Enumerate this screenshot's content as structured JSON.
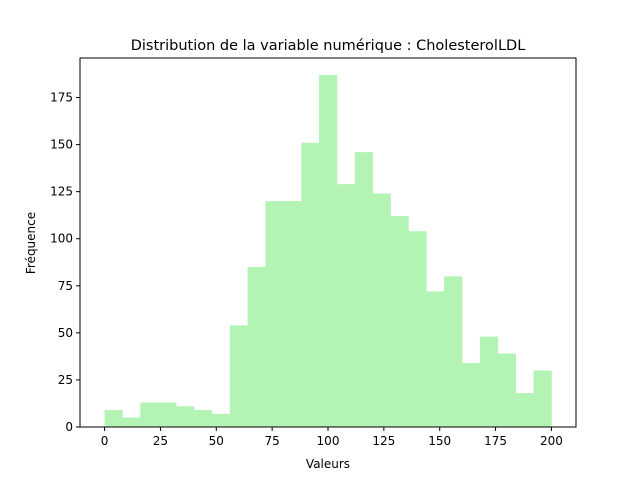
{
  "chart_data": {
    "type": "bar",
    "title": "Distribution de la variable numérique : CholesterolLDL",
    "xlabel": "Valeurs",
    "ylabel": "Fréquence",
    "bin_edges": [
      0,
      8,
      16,
      24,
      32,
      40,
      48,
      56,
      64,
      72,
      80,
      88,
      96,
      104,
      112,
      120,
      128,
      136,
      144,
      152,
      160,
      168,
      176,
      184,
      192,
      200
    ],
    "values": [
      9,
      5,
      13,
      13,
      11,
      9,
      7,
      54,
      85,
      120,
      120,
      151,
      187,
      129,
      146,
      124,
      112,
      104,
      72,
      80,
      34,
      48,
      39,
      18,
      30
    ],
    "xlim": [
      -11,
      211
    ],
    "ylim": [
      0,
      196
    ],
    "xticks": [
      0,
      25,
      50,
      75,
      100,
      125,
      150,
      175,
      200
    ],
    "yticks": [
      0,
      25,
      50,
      75,
      100,
      125,
      150,
      175
    ],
    "bar_color": "#b3f3b3",
    "grid": false,
    "legend": "none"
  }
}
